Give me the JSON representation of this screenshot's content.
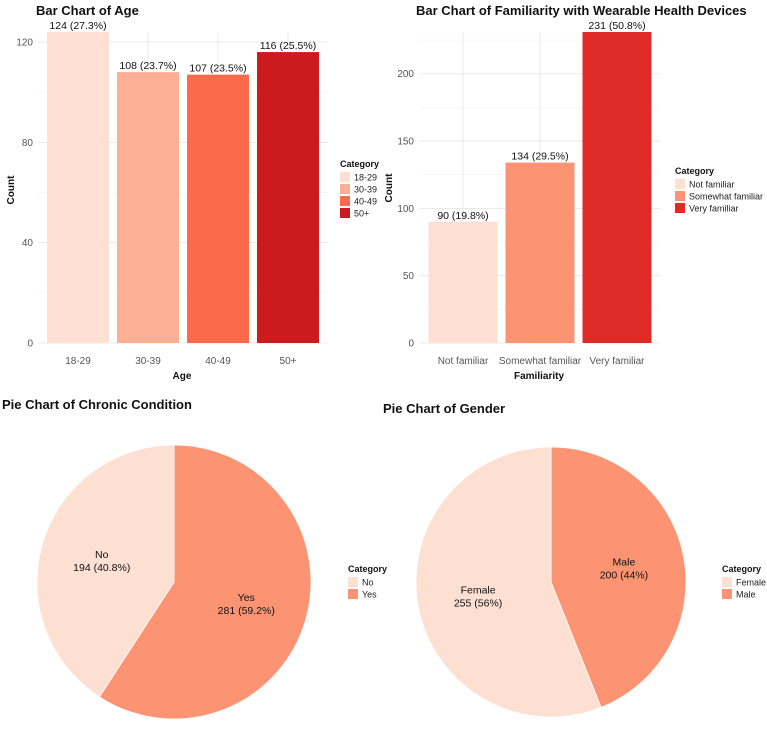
{
  "chart_data": [
    {
      "type": "bar",
      "title": "Bar Chart of Age",
      "xlabel": "Age",
      "ylabel": "Count",
      "categories": [
        "18-29",
        "30-39",
        "40-49",
        "50+"
      ],
      "values": [
        124,
        108,
        107,
        116
      ],
      "data_labels": [
        "124 (27.3%)",
        "108 (23.7%)",
        "107 (23.5%)",
        "116 (25.5%)"
      ],
      "colors": [
        "#fde0d2",
        "#fcaf94",
        "#fb6b4b",
        "#cb1b1e"
      ],
      "yticks": [
        0,
        40,
        80,
        120
      ],
      "ylim": [
        0,
        124
      ],
      "legend": {
        "title": "Category",
        "labels": [
          "18-29",
          "30-39",
          "40-49",
          "50+"
        ]
      }
    },
    {
      "type": "bar",
      "title": "Bar Chart of Familiarity with Wearable Health Devices",
      "xlabel": "Familiarity",
      "ylabel": "Count",
      "categories": [
        "Not familiar",
        "Somewhat familiar",
        "Very familiar"
      ],
      "values": [
        90,
        134,
        231
      ],
      "data_labels": [
        "90 (19.8%)",
        "134 (29.5%)",
        "231 (50.8%)"
      ],
      "colors": [
        "#fde0d2",
        "#fc9474",
        "#de2b25"
      ],
      "yticks": [
        0,
        50,
        100,
        150,
        200
      ],
      "ylim": [
        0,
        231
      ],
      "legend": {
        "title": "Category",
        "labels": [
          "Not familiar",
          "Somewhat familiar",
          "Very familiar"
        ]
      }
    },
    {
      "type": "pie",
      "title": "Pie Chart of Chronic Condition",
      "categories": [
        "No",
        "Yes"
      ],
      "values": [
        194,
        281
      ],
      "slice_labels": [
        [
          "No",
          "194 (40.8%)"
        ],
        [
          "Yes",
          "281 (59.2%)"
        ]
      ],
      "colors": [
        "#fde0d2",
        "#fc9474"
      ],
      "legend": {
        "title": "Category",
        "labels": [
          "No",
          "Yes"
        ]
      }
    },
    {
      "type": "pie",
      "title": "Pie Chart of Gender",
      "categories": [
        "Female",
        "Male"
      ],
      "values": [
        255,
        200
      ],
      "slice_labels": [
        [
          "Female",
          "255 (56%)"
        ],
        [
          "Male",
          "200 (44%)"
        ]
      ],
      "colors": [
        "#fde0d2",
        "#fc9474"
      ],
      "legend": {
        "title": "Category",
        "labels": [
          "Female",
          "Male"
        ]
      }
    }
  ]
}
